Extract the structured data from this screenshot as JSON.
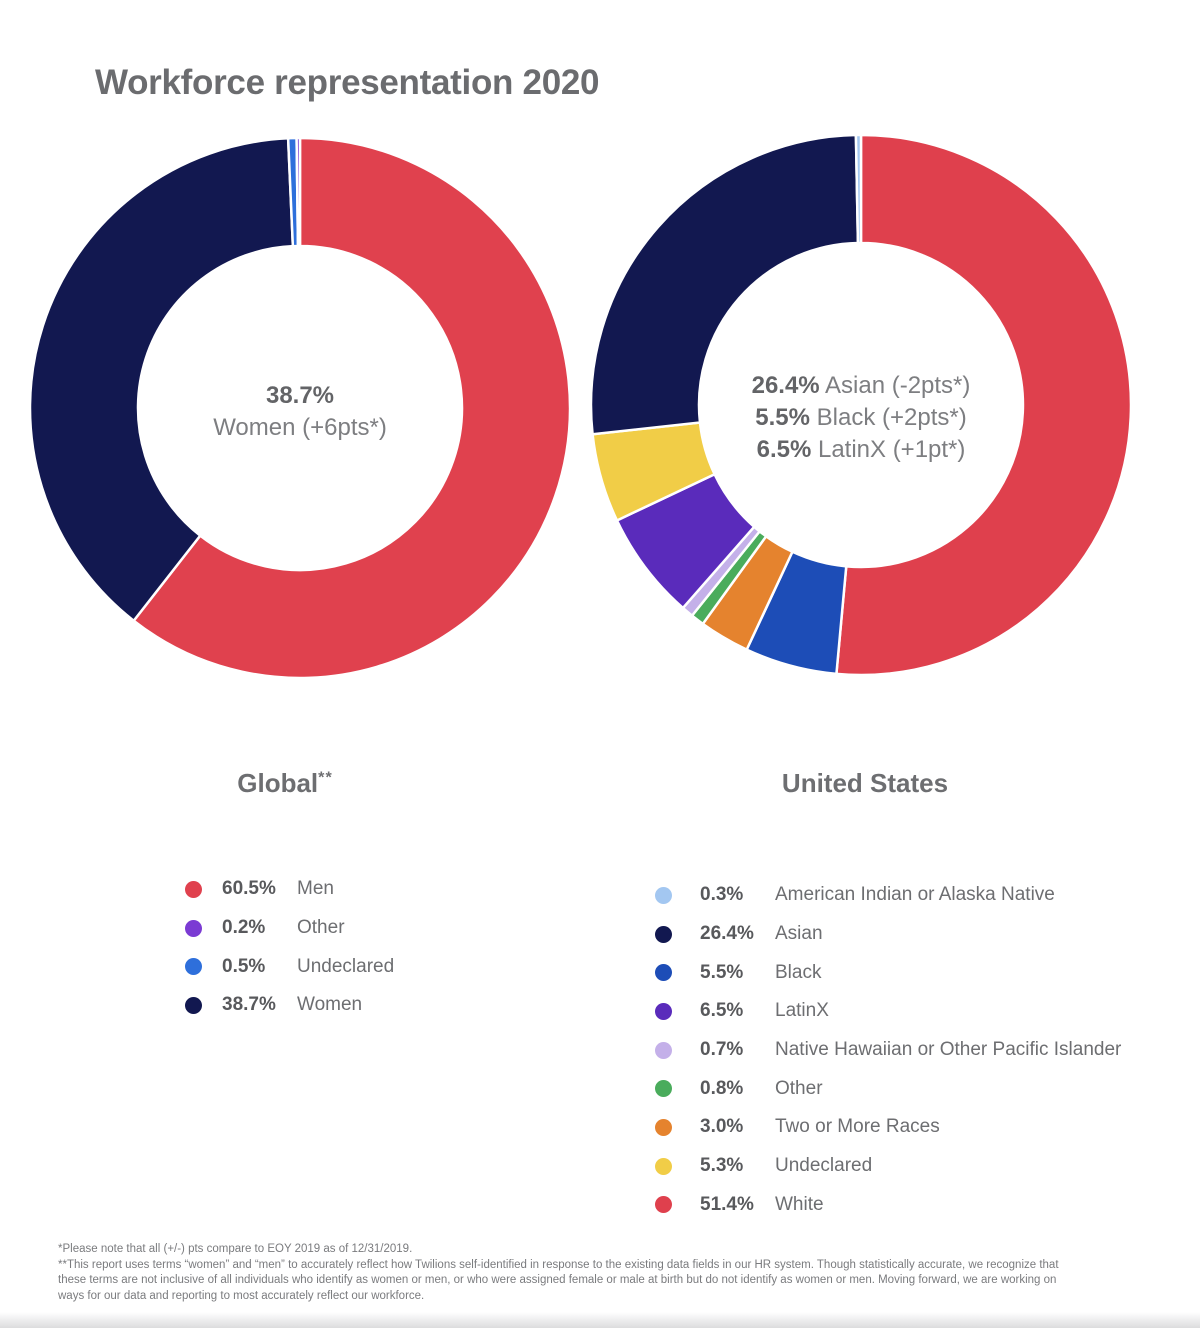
{
  "page": {
    "title": "Workforce representation 2020"
  },
  "chart_data": [
    {
      "id": "global",
      "type": "pie",
      "title": "Global",
      "title_superscript": "**",
      "center_lines": [
        {
          "pct": "38.7%"
        },
        {
          "label": "Women (+6pts*)"
        }
      ],
      "slices_clockwise_from_top": [
        "Men",
        "Women",
        "Undeclared",
        "Other"
      ],
      "legend": [
        {
          "pct": "60.5%",
          "value": 60.5,
          "label": "Men",
          "color": "#E0414E"
        },
        {
          "pct": "0.2%",
          "value": 0.2,
          "label": "Other",
          "color": "#7B3BD3"
        },
        {
          "pct": "0.5%",
          "value": 0.5,
          "label": "Undeclared",
          "color": "#2E6FDB"
        },
        {
          "pct": "38.7%",
          "value": 38.7,
          "label": "Women",
          "color": "#121850"
        }
      ]
    },
    {
      "id": "us",
      "type": "pie",
      "title": "United States",
      "title_superscript": "",
      "center_lines": [
        {
          "pct": "26.4%",
          "label": "Asian (-2pts*)"
        },
        {
          "pct": "5.5%",
          "label": "Black (+2pts*)"
        },
        {
          "pct": "6.5%",
          "label": "LatinX (+1pt*)"
        }
      ],
      "slices_clockwise_from_top": [
        "White",
        "Black",
        "Two or More Races",
        "Other",
        "Native Hawaiian or Other Pacific Islander",
        "LatinX",
        "Undeclared",
        "Asian",
        "American Indian or Alaska Native"
      ],
      "legend": [
        {
          "pct": "0.3%",
          "value": 0.3,
          "label": "American Indian or Alaska Native",
          "color": "#A3C7F1"
        },
        {
          "pct": "26.4%",
          "value": 26.4,
          "label": "Asian",
          "color": "#121850"
        },
        {
          "pct": "5.5%",
          "value": 5.5,
          "label": "Black",
          "color": "#1D4DB7"
        },
        {
          "pct": "6.5%",
          "value": 6.5,
          "label": "LatinX",
          "color": "#5A2BBB"
        },
        {
          "pct": "0.7%",
          "value": 0.7,
          "label": "Native Hawaiian or Other Pacific Islander",
          "color": "#C4B0E9"
        },
        {
          "pct": "0.8%",
          "value": 0.8,
          "label": "Other",
          "color": "#4AAC5C"
        },
        {
          "pct": "3.0%",
          "value": 3.0,
          "label": "Two or More Races",
          "color": "#E5832E"
        },
        {
          "pct": "5.3%",
          "value": 5.3,
          "label": "Undeclared",
          "color": "#F1CD47"
        },
        {
          "pct": "51.4%",
          "value": 51.4,
          "label": "White",
          "color": "#DF404D"
        }
      ]
    }
  ],
  "footnotes": {
    "line1": "*Please note that all (+/-) pts compare to EOY 2019 as of 12/31/2019.",
    "line2": "**This report uses terms “women” and “men” to accurately reflect how Twilions self-identified in response to the existing data fields in our HR system. Though statistically accurate, we recognize that these terms are not inclusive of all individuals who identify as women or men, or who were assigned female or male at birth but do not identify as women or men. Moving forward, we are working on ways for our data and reporting to most accurately reflect our workforce."
  }
}
